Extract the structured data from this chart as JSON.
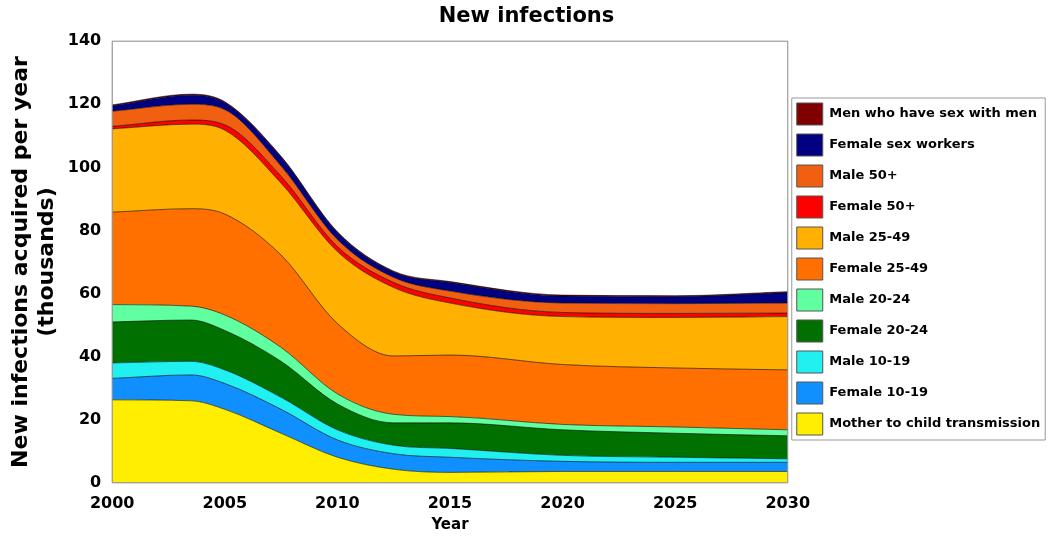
{
  "chart_data": {
    "type": "area",
    "title": "New infections",
    "xlabel": "Year",
    "ylabel": "New infections acquired per year\n(thousands)",
    "x": [
      2000,
      2003.5,
      2005,
      2007.5,
      2010,
      2012.5,
      2015,
      2020,
      2025,
      2030
    ],
    "xlim": [
      2000,
      2030
    ],
    "xticks": [
      2000,
      2005,
      2010,
      2015,
      2020,
      2025,
      2030
    ],
    "ylim": [
      0,
      140
    ],
    "yticks": [
      0,
      20,
      40,
      60,
      80,
      100,
      120,
      140
    ],
    "stacked": true,
    "grid": false,
    "legend": "right",
    "marker": "none",
    "series": [
      {
        "name": "Mother to child transmission",
        "color": "#ffee00",
        "values": [
          26.3,
          26,
          23.3,
          15.7,
          8.1,
          4.3,
          3.3,
          3.6,
          3.6,
          3.6
        ]
      },
      {
        "name": "Female 10-19",
        "color": "#1090ff",
        "values": [
          6.8,
          8.2,
          8.2,
          7.6,
          5.5,
          4.9,
          4.8,
          3.2,
          2.9,
          2.9
        ]
      },
      {
        "name": "Male 10-19",
        "color": "#20f0f0",
        "values": [
          4.9,
          4.3,
          4.3,
          3.8,
          3.2,
          2.7,
          2.8,
          1.9,
          1.6,
          1.1
        ]
      },
      {
        "name": "Female 20-24",
        "color": "#007000",
        "values": [
          13,
          13.1,
          12.5,
          11.4,
          8.2,
          7.1,
          8.1,
          8.1,
          7.6,
          7.3
        ]
      },
      {
        "name": "Male 20-24",
        "color": "#60ffa0",
        "values": [
          5.5,
          4.4,
          4.9,
          4.4,
          3.2,
          2.7,
          2.0,
          1.7,
          2.0,
          1.9
        ]
      },
      {
        "name": "Female 25-49",
        "color": "#ff7000",
        "values": [
          29.3,
          30.9,
          32,
          29.3,
          22.3,
          18.5,
          19.5,
          19,
          18.7,
          19
        ]
      },
      {
        "name": "Male 25-49",
        "color": "#ffb000",
        "values": [
          26.4,
          26.8,
          26.6,
          22.8,
          22.8,
          21.7,
          16.5,
          15.2,
          16,
          16.9
        ]
      },
      {
        "name": "Female 50+",
        "color": "#ff0000",
        "values": [
          0.8,
          1.3,
          1.7,
          2.2,
          1.6,
          1.6,
          1.6,
          1.3,
          1.3,
          1.1
        ]
      },
      {
        "name": "Male 50+",
        "color": "#f06010",
        "values": [
          4.8,
          5,
          4.8,
          3.2,
          2.2,
          1.6,
          2.2,
          3,
          3.1,
          3.2
        ]
      },
      {
        "name": "Female sex workers",
        "color": "#000080",
        "values": [
          1.7,
          2.9,
          2.2,
          2.8,
          2.2,
          1.7,
          2.7,
          2.2,
          2.2,
          3.3
        ]
      },
      {
        "name": "Men who have sex with men",
        "color": "#800000",
        "values": [
          0.3,
          0.3,
          0.3,
          0.3,
          0.3,
          0.3,
          0.3,
          0.3,
          0.3,
          0.3
        ]
      }
    ]
  }
}
